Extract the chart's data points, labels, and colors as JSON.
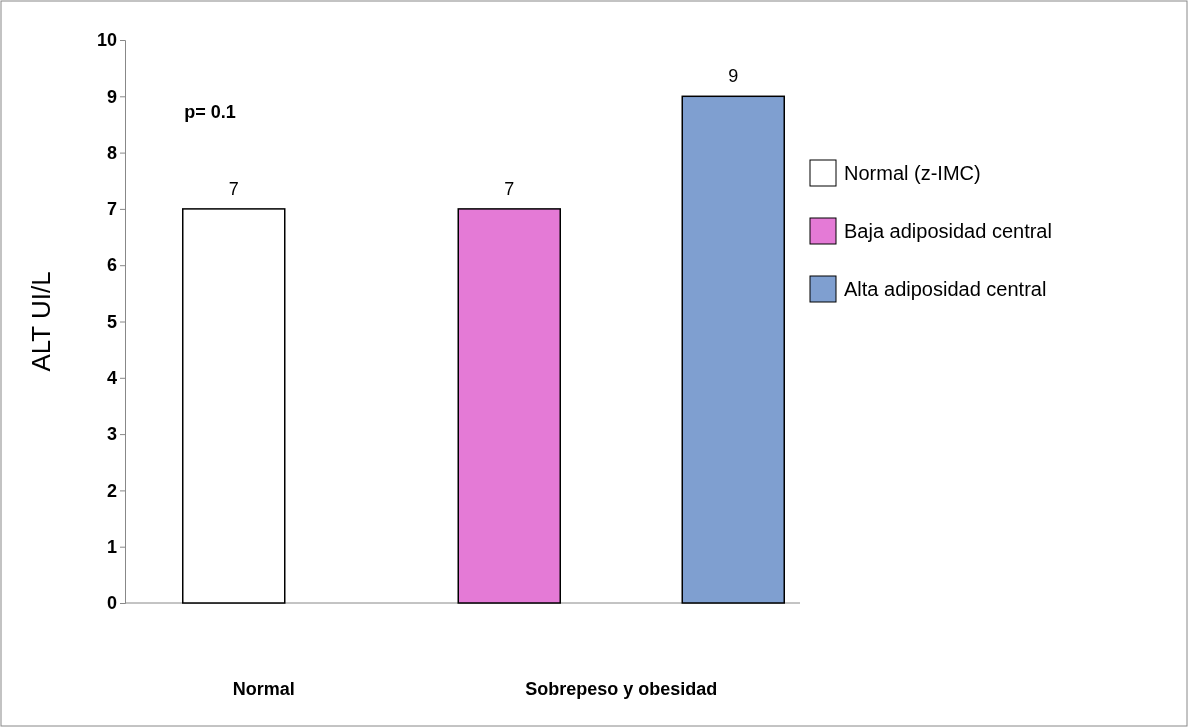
{
  "chart_data": {
    "type": "bar",
    "ylabel": "ALT UI/L",
    "categories": [
      "Normal",
      "Sobrepeso y obesidad"
    ],
    "series": [
      {
        "name": "Normal (z-IMC)",
        "color": "#ffffff",
        "values": [
          7,
          null
        ]
      },
      {
        "name": "Baja adiposidad central",
        "color": "#e47ad6",
        "values": [
          null,
          7
        ]
      },
      {
        "name": "Alta adiposidad central",
        "color": "#7f9fd0",
        "values": [
          null,
          9
        ]
      }
    ],
    "ylim": [
      0,
      10
    ],
    "yticks": [
      0,
      1,
      2,
      3,
      4,
      5,
      6,
      7,
      8,
      9,
      10
    ],
    "grid": false,
    "legend": "right",
    "data_labels": true,
    "annotations": [
      "p= 0.1"
    ]
  }
}
